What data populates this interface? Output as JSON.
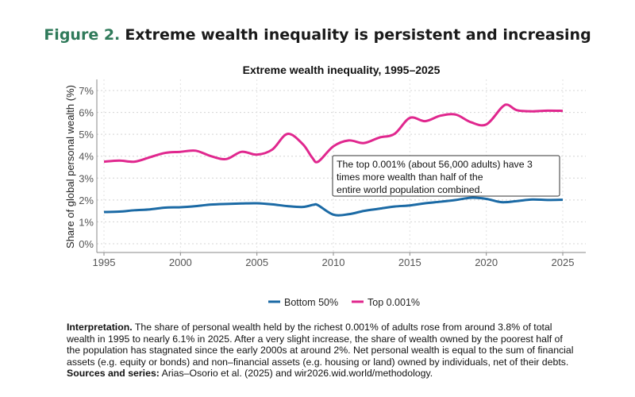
{
  "figure": {
    "number": "Figure 2.",
    "title": "Extreme wealth inequality is persistent and increasing"
  },
  "chart_data": {
    "type": "line",
    "title": "Extreme wealth inequality, 1995–2025",
    "xlabel": "",
    "ylabel": "Share of global personal wealth (%)",
    "xlim": [
      1995,
      2025
    ],
    "ylim": [
      0,
      7
    ],
    "xticks": [
      1995,
      2000,
      2005,
      2010,
      2015,
      2020,
      2025
    ],
    "yticks": [
      0,
      1,
      2,
      3,
      4,
      5,
      6,
      7
    ],
    "ytick_labels": [
      "0%",
      "1%",
      "2%",
      "3%",
      "4%",
      "5%",
      "6%",
      "7%"
    ],
    "grid": true,
    "legend_position": "bottom",
    "series": [
      {
        "name": "Bottom 50%",
        "color": "#1b6aa5",
        "x": [
          1995,
          1996,
          1997,
          1998,
          1999,
          2000,
          2001,
          2002,
          2003,
          2004,
          2005,
          2006,
          2007,
          2008,
          2008.7,
          2009,
          2010,
          2011,
          2012,
          2013,
          2014,
          2015,
          2016,
          2017,
          2018,
          2019,
          2020,
          2021,
          2022,
          2023,
          2024,
          2025
        ],
        "y": [
          1.45,
          1.47,
          1.53,
          1.57,
          1.65,
          1.67,
          1.72,
          1.79,
          1.82,
          1.84,
          1.85,
          1.8,
          1.72,
          1.68,
          1.78,
          1.76,
          1.33,
          1.35,
          1.5,
          1.6,
          1.7,
          1.75,
          1.85,
          1.92,
          2.0,
          2.1,
          2.05,
          1.9,
          1.95,
          2.02,
          2.0,
          2.01
        ]
      },
      {
        "name": "Top 0.001%",
        "color": "#e0278e",
        "x": [
          1995,
          1996,
          1997,
          1998,
          1999,
          2000,
          2001,
          2002,
          2003,
          2004,
          2005,
          2006,
          2007,
          2008,
          2008.6,
          2009,
          2010,
          2011,
          2012,
          2013,
          2014,
          2015,
          2016,
          2017,
          2018,
          2019,
          2020,
          2021,
          2021.4,
          2022,
          2023,
          2024,
          2025
        ],
        "y": [
          3.75,
          3.8,
          3.75,
          3.95,
          4.15,
          4.2,
          4.25,
          4.0,
          3.87,
          4.2,
          4.07,
          4.3,
          5.02,
          4.55,
          3.95,
          3.75,
          4.45,
          4.72,
          4.6,
          4.85,
          5.02,
          5.75,
          5.6,
          5.85,
          5.9,
          5.55,
          5.45,
          6.22,
          6.35,
          6.1,
          6.05,
          6.08,
          6.07
        ]
      }
    ],
    "annotation": "The top 0.001% (about 56,000 adults) have 3 times more wealth than half of the entire world population combined."
  },
  "note": {
    "interpretation_label": "Interpretation.",
    "interpretation_text": " The share of personal wealth held by the richest 0.001% of adults rose from around 3.8% of total wealth in 1995 to nearly 6.1% in 2025. After a very slight increase, the share of wealth owned by the poorest half of the population has stagnated since the early 2000s at around 2%. Net personal wealth is equal to the sum of financial assets (e.g. equity or bonds) and non–financial assets (e.g. housing or land) owned by individuals, net of their debts. ",
    "sources_label": "Sources and series:",
    "sources_text": " Arias–Osorio et al. (2025) and wir2026.wid.world/methodology."
  }
}
